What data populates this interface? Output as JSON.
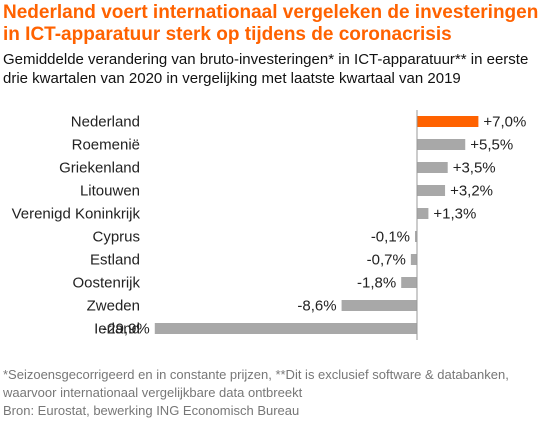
{
  "title": "Nederland voert internationaal vergeleken de investeringen in ICT-apparatuur sterk op tijdens de coronacrisis",
  "subtitle": "Gemiddelde verandering van bruto-investeringen* in ICT-apparatuur** in eerste drie kwartalen van 2020 in vergelijking met laatste kwartaal van 2019",
  "footnote_line1": "*Seizoensgecorrigeerd en in constante prijzen, **Dit is exclusief software & databanken, waarvoor internationaal vergelijkbare data ontbreekt",
  "source": "Bron: Eurostat, bewerking ING Economisch Bureau",
  "colors": {
    "title": "#ff6200",
    "highlight": "#ff6200",
    "bar": "#a8a8a8",
    "axis": "#999999",
    "text": "#222222"
  },
  "chart_data": {
    "type": "bar",
    "orientation": "horizontal",
    "categories": [
      "Nederland",
      "Roemenië",
      "Griekenland",
      "Litouwen",
      "Verenigd Koninkrijk",
      "Cyprus",
      "Estland",
      "Oostenrijk",
      "Zweden",
      "Ierland"
    ],
    "values": [
      7.0,
      5.5,
      3.5,
      3.2,
      1.3,
      -0.1,
      -0.7,
      -1.8,
      -8.6,
      -29.9
    ],
    "labels": [
      "+7,0%",
      "+5,5%",
      "+3,5%",
      "+3,2%",
      "+1,3%",
      "-0,1%",
      "-0,7%",
      "-1,8%",
      "-8,6%",
      "-29,9%"
    ],
    "highlight": "Nederland",
    "xlim": [
      -30,
      7.5
    ]
  }
}
